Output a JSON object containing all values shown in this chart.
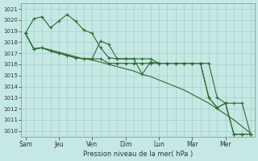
{
  "xlabel": "Pression niveau de la mer( hPa )",
  "background_color": "#c5e8e5",
  "grid_color": "#9dc8be",
  "line_color": "#2d6b2d",
  "ylim": [
    1009.5,
    1021.5
  ],
  "yticks": [
    1010,
    1011,
    1012,
    1013,
    1014,
    1015,
    1016,
    1017,
    1018,
    1019,
    1020,
    1021
  ],
  "day_labels": [
    "Sam",
    "Jeu",
    "Ven",
    "Dim",
    "Lun",
    "Mar",
    "Mer"
  ],
  "series": [
    [
      1018.8,
      1017.4,
      1017.5,
      1017.3,
      1017.1,
      1016.9,
      1016.7,
      1016.5,
      1016.4,
      1016.2,
      1016.0,
      1015.8,
      1015.6,
      1015.4,
      1015.1,
      1014.9,
      1014.6,
      1014.3,
      1014.0,
      1013.7,
      1013.3,
      1012.9,
      1012.5,
      1012.0,
      1011.5,
      1011.0,
      1010.4,
      1009.8
    ],
    [
      1018.8,
      1020.1,
      1020.3,
      1019.3,
      1019.9,
      1020.5,
      1019.9,
      1019.1,
      1018.8,
      1017.5,
      1016.6,
      1016.5,
      1016.5,
      1016.5,
      1016.5,
      1016.5,
      1016.1,
      1016.1,
      1016.1,
      1016.1,
      1016.1,
      1016.1,
      1016.1,
      1013.0,
      1012.5,
      1012.5,
      1012.5,
      1009.7
    ],
    [
      1018.8,
      1017.4,
      1017.5,
      1017.2,
      1017.0,
      1016.8,
      1016.6,
      1016.5,
      1016.5,
      1018.1,
      1017.8,
      1016.5,
      1016.5,
      1016.5,
      1015.1,
      1016.2,
      1016.1,
      1016.1,
      1016.1,
      1016.1,
      1016.1,
      1016.1,
      1013.0,
      1012.1,
      1012.5,
      1009.7,
      1009.7,
      1009.7
    ],
    [
      1018.8,
      1017.4,
      1017.5,
      1017.2,
      1017.0,
      1016.8,
      1016.6,
      1016.5,
      1016.5,
      1016.5,
      1016.1,
      1016.1,
      1016.1,
      1016.1,
      1016.1,
      1016.1,
      1016.1,
      1016.1,
      1016.1,
      1016.1,
      1016.1,
      1016.1,
      1013.0,
      1012.1,
      1012.5,
      1009.7,
      1009.7,
      1009.7
    ]
  ],
  "n_points": 28,
  "day_x_positions": [
    0,
    4,
    8,
    12,
    16,
    20,
    24
  ],
  "vline_x_positions": [
    0,
    4,
    8,
    12,
    16,
    20,
    24
  ]
}
